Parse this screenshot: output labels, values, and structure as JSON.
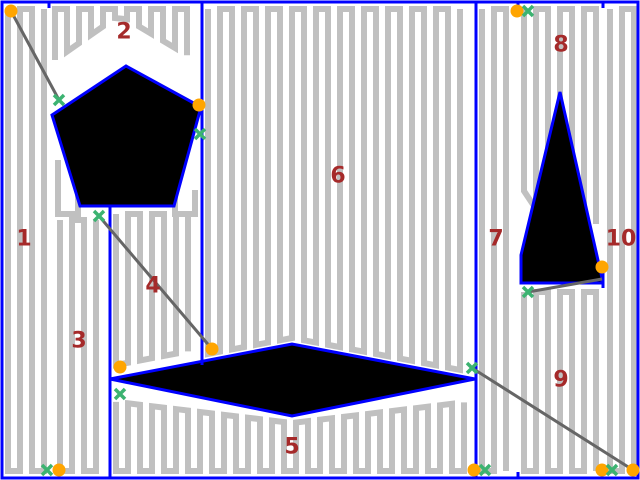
{
  "colors": {
    "background": "#ffffff",
    "boundary": "#0000ff",
    "sweep_path": "#c0c0c0",
    "obstacle": "#000000",
    "transition": "#666666",
    "label": "#a52a2a",
    "start_marker": "#ffa500",
    "end_marker": "#3cb371"
  },
  "regions": [
    {
      "id": "1",
      "label": "1"
    },
    {
      "id": "2",
      "label": "2"
    },
    {
      "id": "3",
      "label": "3"
    },
    {
      "id": "4",
      "label": "4"
    },
    {
      "id": "5",
      "label": "5"
    },
    {
      "id": "6",
      "label": "6"
    },
    {
      "id": "7",
      "label": "7"
    },
    {
      "id": "8",
      "label": "8"
    },
    {
      "id": "9",
      "label": "9"
    },
    {
      "id": "10",
      "label": "10"
    }
  ]
}
